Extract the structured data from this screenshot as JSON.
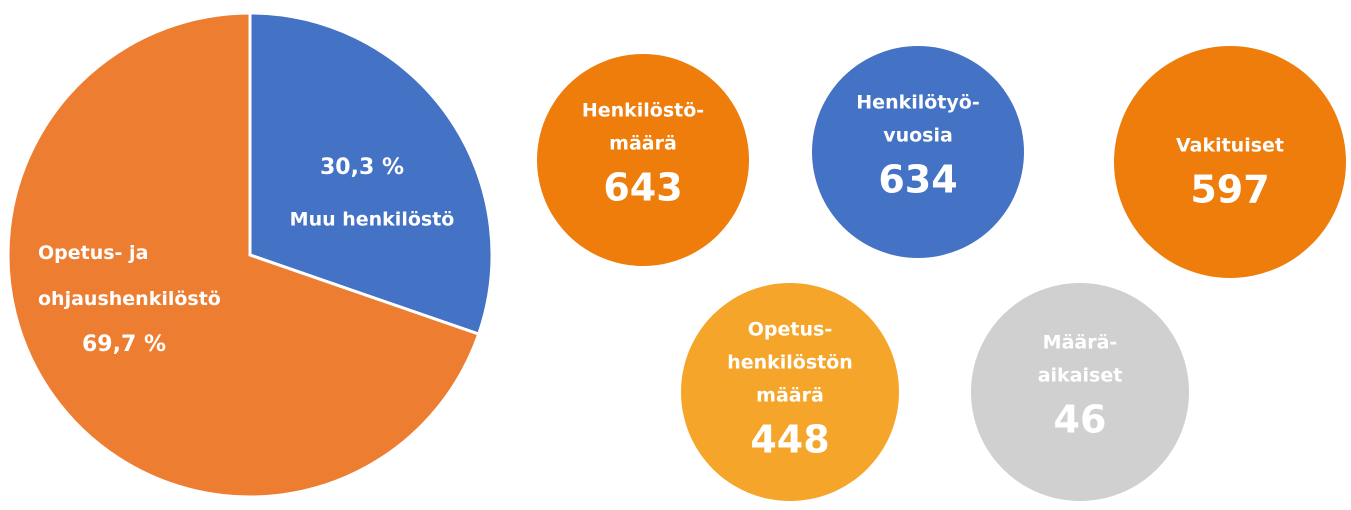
{
  "chart_data": [
    {
      "type": "pie",
      "categories": [
        "Muu henkilöstö",
        "Opetus- ja ohjaushenkilöstö"
      ],
      "values": [
        30.3,
        69.7
      ],
      "value_labels": [
        "30,3 %",
        "69,7 %"
      ],
      "colors": [
        "#4472c4",
        "#ed7d31"
      ]
    },
    {
      "type": "stats",
      "items": [
        {
          "label_lines": [
            "Henkilöstö-",
            "määrä"
          ],
          "value": 643,
          "color": "#ee7d0c"
        },
        {
          "label_lines": [
            "Henkilötyö-",
            "vuosia"
          ],
          "value": 634,
          "color": "#4472c4"
        },
        {
          "label_lines": [
            "Vakituiset"
          ],
          "value": 597,
          "color": "#ee7d0c"
        },
        {
          "label_lines": [
            "Opetus-",
            "henkilöstön",
            "määrä"
          ],
          "value": 448,
          "color": "#f5a62a"
        },
        {
          "label_lines": [
            "Määrä-",
            "aikaiset"
          ],
          "value": 46,
          "color": "#d0d0d0"
        }
      ]
    }
  ]
}
